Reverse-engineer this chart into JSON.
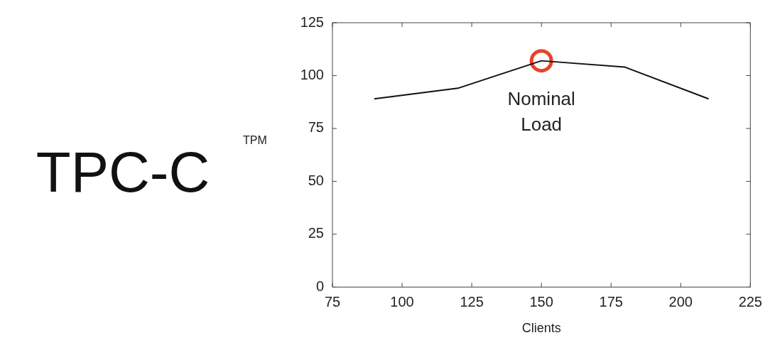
{
  "chart_data": {
    "type": "line",
    "title": "TPC-C",
    "xlabel": "Clients",
    "ylabel": "TPM",
    "xlim": [
      75,
      225
    ],
    "xticks": [
      75,
      100,
      125,
      150,
      175,
      200,
      225
    ],
    "ylim": [
      0,
      125
    ],
    "yticks": [
      0,
      25,
      50,
      75,
      100,
      125
    ],
    "series": [
      {
        "color": "#111111",
        "x": [
          90,
          120,
          150,
          180,
          210
        ],
        "values": [
          89,
          94,
          107,
          104,
          89
        ]
      },
      {
        "type": "scatter",
        "color": "#e8412c",
        "x": [
          150
        ],
        "values": [
          107
        ]
      }
    ],
    "annotations": [
      {
        "text": "Nominal Load",
        "x": 150,
        "y": 107
      }
    ],
    "grid": false,
    "legend": false
  }
}
